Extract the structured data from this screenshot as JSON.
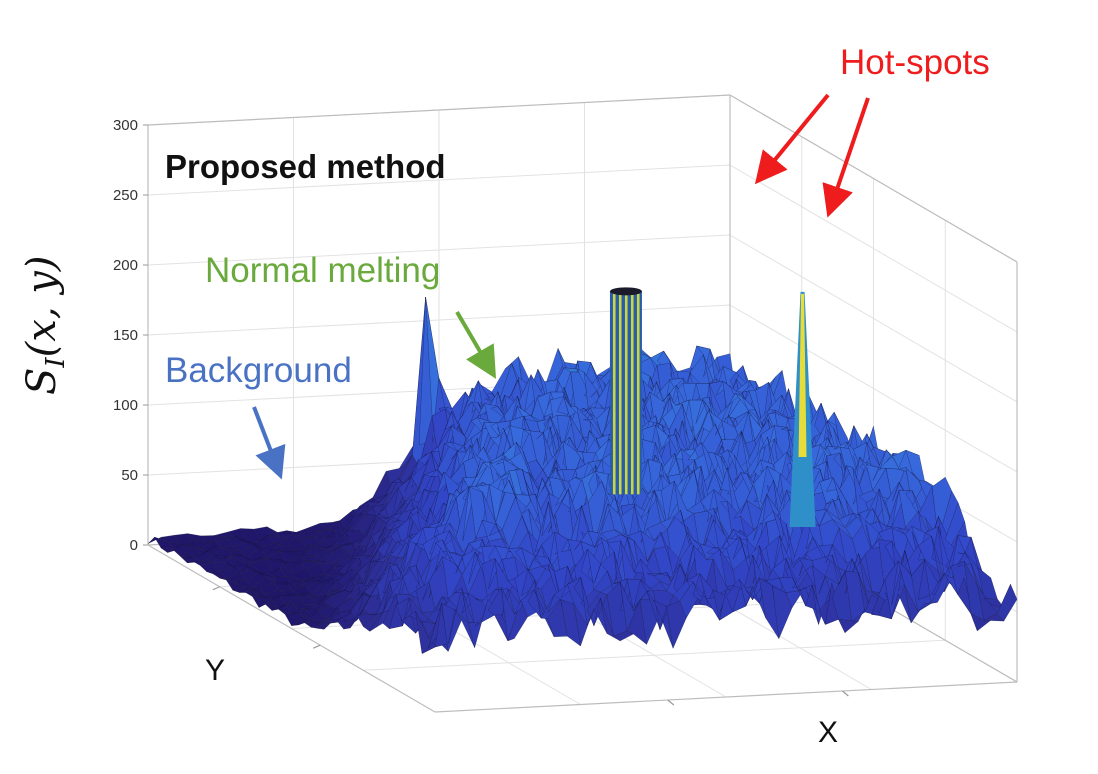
{
  "chart_data": {
    "type": "surface",
    "title": "Proposed method",
    "xlabel": "X",
    "ylabel": "Y",
    "zlabel": "S_I(x, y)",
    "zlabel_main": "S",
    "zlabel_sub": "I",
    "zlabel_args": "(x, y)",
    "zlim": [
      0,
      300
    ],
    "zticks": [
      0,
      50,
      100,
      150,
      200,
      250,
      300
    ],
    "grid": true,
    "colormap": "parula",
    "surface": {
      "background_level": 5,
      "normal_melting_level": 105,
      "peaks": [
        {
          "label": "Hot-spots",
          "x": 0.55,
          "y": 0.55,
          "z": 235
        },
        {
          "label": "Hot-spots",
          "x": 0.74,
          "y": 0.78,
          "z": 258
        }
      ]
    },
    "annotations": [
      {
        "text": "Hot-spots",
        "color": "#ee1c1c"
      },
      {
        "text": "Normal melting",
        "color": "#6aaa3c"
      },
      {
        "text": "Background",
        "color": "#4a72c4"
      }
    ]
  }
}
